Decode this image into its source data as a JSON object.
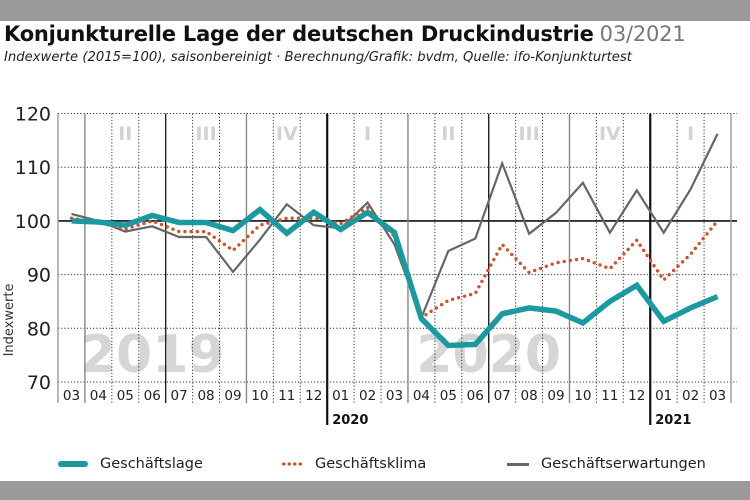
{
  "header": {
    "title": "Konjunkturelle Lage der deutschen Druckindustrie",
    "date": "03/2021",
    "subtitle": "Indexwerte (2015=100), saisonbereinigt · Berechnung/Grafik: bvdm, Quelle: ifo-Konjunkturtest"
  },
  "colors": {
    "geschaeftslage": "#1a9aa0",
    "geschaeftsklima": "#d0502a",
    "geschaeftserwartungen": "#666666",
    "band": "#9b9b9b",
    "watermark": "#d6d6d6"
  },
  "chart_data": {
    "type": "line",
    "title": "Konjunkturelle Lage der deutschen Druckindustrie 03/2021",
    "xlabel": "",
    "ylabel": "Indexwerte",
    "ylim": [
      70,
      120
    ],
    "yticks": [
      "70",
      "80",
      "90",
      "100",
      "110",
      "120"
    ],
    "grid": true,
    "legend": "bottom",
    "x": [
      "03",
      "04",
      "05",
      "06",
      "07",
      "08",
      "09",
      "10",
      "11",
      "12",
      "01",
      "02",
      "03",
      "04",
      "05",
      "06",
      "07",
      "08",
      "09",
      "10",
      "11",
      "12",
      "01",
      "02",
      "03"
    ],
    "year_labels": [
      {
        "label": "2020",
        "at_index": 10
      },
      {
        "label": "2021",
        "at_index": 22
      }
    ],
    "quarter_labels": [
      {
        "label": "II",
        "start": 1
      },
      {
        "label": "III",
        "start": 4
      },
      {
        "label": "IV",
        "start": 7
      },
      {
        "label": "I",
        "start": 10
      },
      {
        "label": "II",
        "start": 13
      },
      {
        "label": "III",
        "start": 16
      },
      {
        "label": "IV",
        "start": 19
      },
      {
        "label": "I",
        "start": 22
      }
    ],
    "watermarks": [
      {
        "label": "2019",
        "from": 1,
        "to": 6
      },
      {
        "label": "2020",
        "from": 13,
        "to": 19
      }
    ],
    "series": [
      {
        "name": "Geschäftslage",
        "key": "geschaeftslage",
        "style": "thick",
        "values": [
          100.0,
          99.8,
          99.2,
          101.0,
          99.7,
          99.7,
          98.2,
          102.1,
          97.7,
          101.6,
          98.4,
          101.6,
          97.8,
          81.8,
          76.8,
          77.0,
          82.7,
          83.8,
          83.2,
          81.0,
          85.0,
          88.0,
          81.3,
          83.8,
          85.9
        ]
      },
      {
        "name": "Geschäftsklima",
        "key": "geschaeftsklima",
        "style": "dotted",
        "values": [
          100.5,
          99.7,
          98.5,
          100.0,
          98.0,
          98.0,
          94.5,
          99.2,
          100.5,
          100.5,
          99.5,
          102.5,
          97.1,
          82.0,
          85.2,
          86.5,
          95.6,
          90.4,
          92.2,
          93.0,
          91.1,
          96.4,
          89.0,
          93.8,
          100.0
        ]
      },
      {
        "name": "Geschäftserwartungen",
        "key": "geschaeftserwartungen",
        "style": "thin",
        "values": [
          101.3,
          100.0,
          98.0,
          99.0,
          97.0,
          97.0,
          90.5,
          96.5,
          103.1,
          99.2,
          98.6,
          103.4,
          95.6,
          82.0,
          94.4,
          96.7,
          110.7,
          97.6,
          101.5,
          107.1,
          97.8,
          105.7,
          97.8,
          105.9,
          116.2
        ]
      }
    ]
  }
}
